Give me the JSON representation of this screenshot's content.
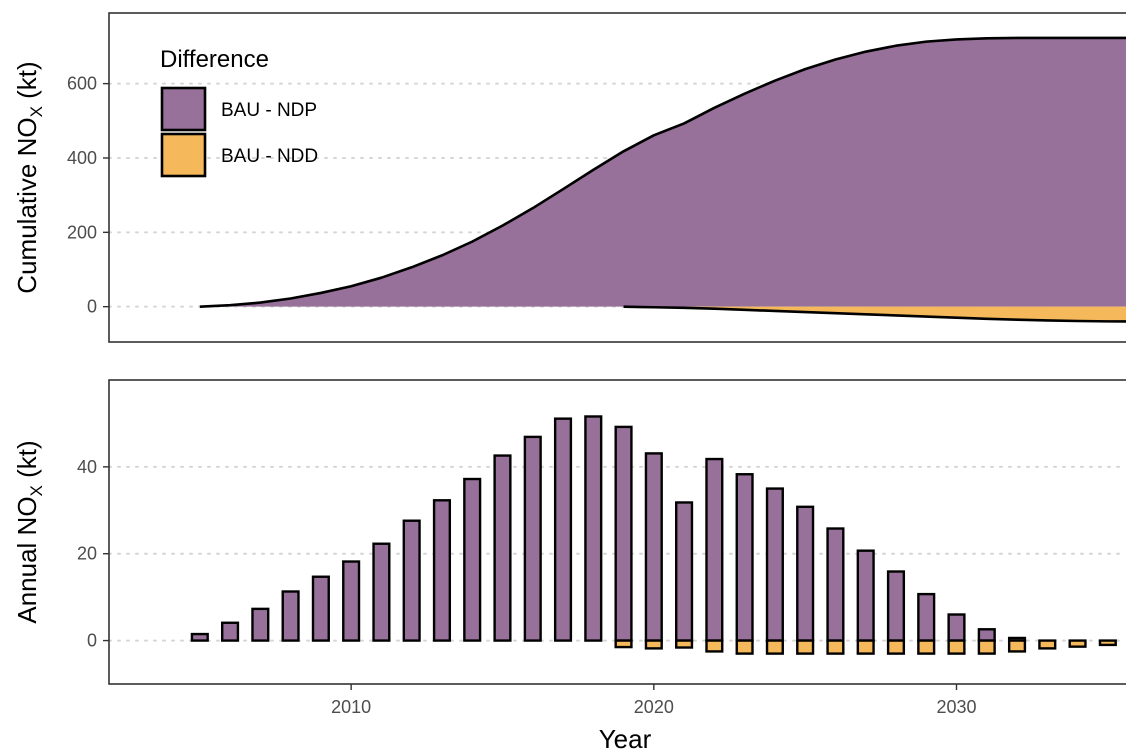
{
  "colors": {
    "bau_ndp": "#97719a",
    "bau_ndd": "#f5b95c"
  },
  "legend": {
    "title": "Difference",
    "position": "top-left",
    "items": [
      {
        "label": "BAU - NDP",
        "color": "#97719a"
      },
      {
        "label": "BAU - NDD",
        "color": "#f5b95c"
      }
    ]
  },
  "axes": {
    "x_title": "Year",
    "x_ticks": [
      2010,
      2020,
      2030
    ],
    "x_range": [
      2002,
      2035.6
    ],
    "top_y_title": {
      "prefix": "Cumulative NO",
      "sub": "X",
      "suffix": " (kt)"
    },
    "top_y_ticks": [
      0,
      200,
      400,
      600
    ],
    "top_y_range": [
      -95,
      790
    ],
    "bottom_y_title": {
      "prefix": "Annual NO",
      "sub": "X",
      "suffix": " (kt)"
    },
    "bottom_y_ticks": [
      0,
      20,
      40
    ],
    "bottom_y_range": [
      -10,
      60
    ],
    "grid": "horizontal dotted"
  },
  "chart_data": [
    {
      "type": "area",
      "panel": "top",
      "ylabel": "Cumulative NOX (kt)",
      "series": [
        {
          "name": "BAU - NDP",
          "x": [
            2005,
            2006,
            2007,
            2008,
            2009,
            2010,
            2011,
            2012,
            2013,
            2014,
            2015,
            2016,
            2017,
            2018,
            2019,
            2020,
            2021,
            2022,
            2023,
            2024,
            2025,
            2026,
            2027,
            2028,
            2029,
            2030,
            2031,
            2032,
            2033,
            2034,
            2035,
            2036
          ],
          "values": [
            0,
            4,
            11,
            22,
            37,
            55,
            78,
            106,
            138,
            175,
            218,
            265,
            316,
            368,
            418,
            461,
            493,
            535,
            573,
            608,
            639,
            665,
            686,
            702,
            713,
            719,
            722,
            723,
            723,
            723,
            723,
            723
          ]
        },
        {
          "name": "BAU - NDD",
          "x": [
            2019,
            2020,
            2021,
            2022,
            2023,
            2024,
            2025,
            2026,
            2027,
            2028,
            2029,
            2030,
            2031,
            2032,
            2033,
            2034,
            2035,
            2036
          ],
          "values": [
            0,
            -1.5,
            -3,
            -5.5,
            -8.5,
            -11.5,
            -14.5,
            -17.5,
            -20.5,
            -23.5,
            -26.5,
            -29.5,
            -32.5,
            -35,
            -37,
            -38.5,
            -39.5,
            -40
          ]
        }
      ]
    },
    {
      "type": "bar",
      "panel": "bottom",
      "ylabel": "Annual NOX (kt)",
      "xlabel": "Year",
      "categories": [
        2005,
        2006,
        2007,
        2008,
        2009,
        2010,
        2011,
        2012,
        2013,
        2014,
        2015,
        2016,
        2017,
        2018,
        2019,
        2020,
        2021,
        2022,
        2023,
        2024,
        2025,
        2026,
        2027,
        2028,
        2029,
        2030,
        2031,
        2032,
        2033,
        2034,
        2035
      ],
      "series": [
        {
          "name": "BAU - NDP",
          "values": [
            1.5,
            4.1,
            7.3,
            11.3,
            14.7,
            18.2,
            22.3,
            27.6,
            32.3,
            37.2,
            42.6,
            46.9,
            51.1,
            51.6,
            49.2,
            43.1,
            31.8,
            41.8,
            38.3,
            35.0,
            30.8,
            25.8,
            20.7,
            15.9,
            10.7,
            6.0,
            2.6,
            0.6,
            0,
            0,
            0
          ]
        },
        {
          "name": "BAU - NDD",
          "values": [
            0,
            0,
            0,
            0,
            0,
            0,
            0,
            0,
            0,
            0,
            0,
            0,
            0,
            0,
            -1.5,
            -1.8,
            -1.6,
            -2.5,
            -3.0,
            -3.0,
            -3.0,
            -3.0,
            -3.0,
            -3.0,
            -3.0,
            -3.0,
            -3.0,
            -2.5,
            -1.8,
            -1.4,
            -1.0
          ]
        }
      ]
    }
  ]
}
